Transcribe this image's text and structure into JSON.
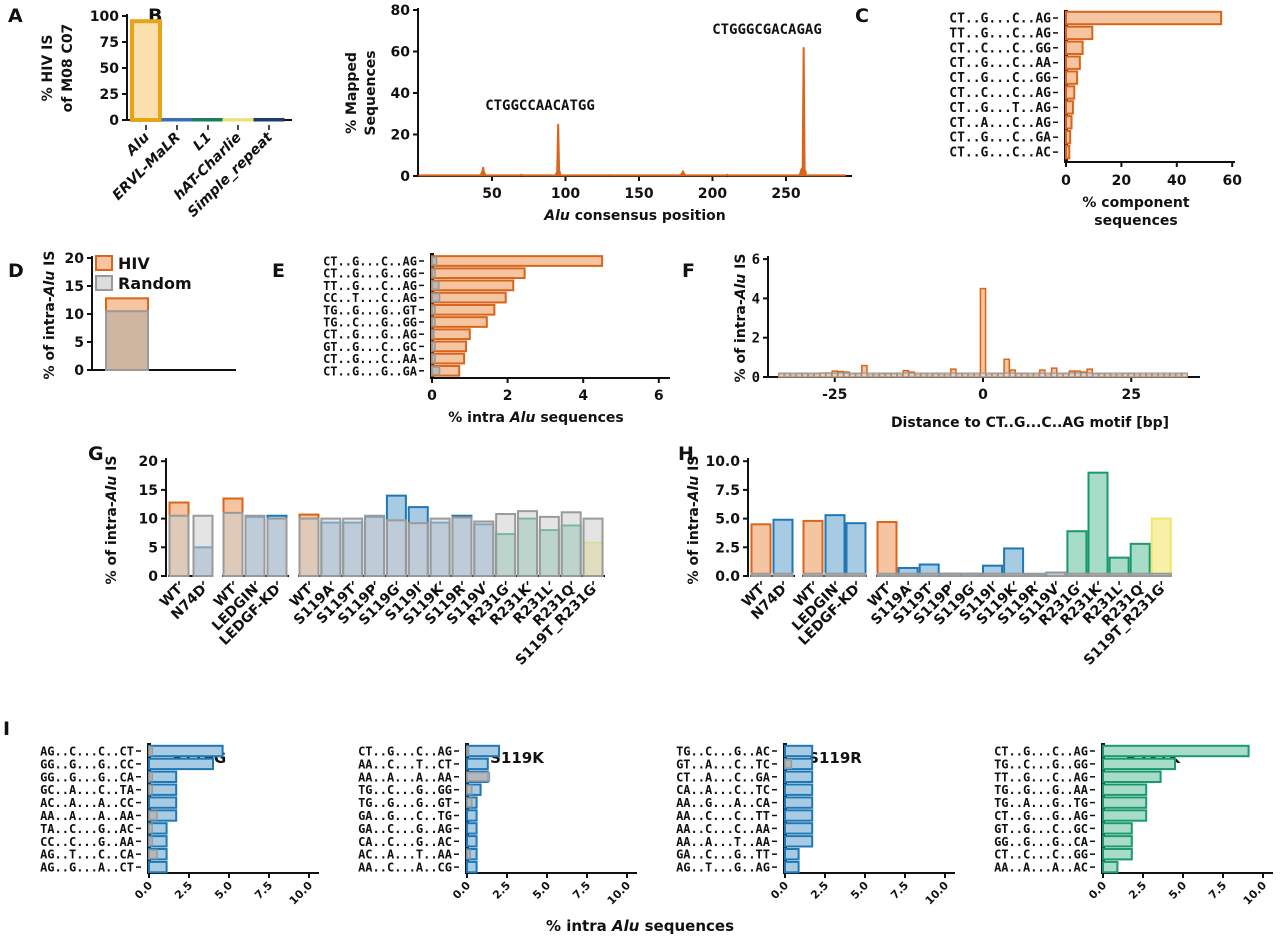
{
  "colors": {
    "orange": "#d9651b",
    "orange_fill": "#f4c5a0",
    "gold": "#e8a317",
    "gold_fill": "#f9e0ad",
    "blue": "#1f77b4",
    "blue_fill": "#a8cbe4",
    "green": "#1a9a6c",
    "green_fill": "#a6dcc8",
    "yellow": "#f2e56b",
    "yellow_fill": "#f8f0a8",
    "gray": "#9a9a9a"
  },
  "chart_data": [
    {
      "id": "A",
      "panel_label": "A",
      "type": "bar",
      "ylabel": [
        "% HIV IS",
        "of M08 C07"
      ],
      "ylim": [
        0,
        100
      ],
      "yticks": [
        "0",
        "25",
        "50",
        "75",
        "100"
      ],
      "categories": [
        "Alu",
        "ERVL-MaLR",
        "L1",
        "hAT-Charlie",
        "Simple_repeat"
      ],
      "values": [
        95,
        0.5,
        0.5,
        0.3,
        0.5
      ],
      "bar_colors": [
        "#e8a317",
        "#3a6fb0",
        "#1a7f5a",
        "#f0e070",
        "#1f3c6e"
      ]
    },
    {
      "id": "B",
      "panel_label": "B",
      "type": "line",
      "xlabel_italic": "Alu",
      "xlabel_rest": " consensus position",
      "ylabel": [
        "% Mapped",
        "Sequences"
      ],
      "xlim": [
        0,
        290
      ],
      "ylim": [
        0,
        80
      ],
      "xticks": [
        "50",
        "100",
        "150",
        "200",
        "250"
      ],
      "yticks": [
        "0",
        "20",
        "40",
        "60",
        "80"
      ],
      "points": [
        [
          10,
          0.3
        ],
        [
          30,
          0.3
        ],
        [
          43,
          1.5
        ],
        [
          44,
          4.2
        ],
        [
          45,
          1.2
        ],
        [
          60,
          0.3
        ],
        [
          70,
          0.6
        ],
        [
          80,
          0.3
        ],
        [
          94,
          1.5
        ],
        [
          95,
          25
        ],
        [
          96,
          2
        ],
        [
          110,
          0.3
        ],
        [
          130,
          0.4
        ],
        [
          150,
          0.3
        ],
        [
          170,
          0.3
        ],
        [
          179,
          1
        ],
        [
          180,
          2.5
        ],
        [
          181,
          0.8
        ],
        [
          195,
          0.3
        ],
        [
          210,
          0.6
        ],
        [
          230,
          0.3
        ],
        [
          250,
          0.3
        ],
        [
          260,
          2
        ],
        [
          261,
          4
        ],
        [
          262,
          62
        ],
        [
          263,
          3
        ],
        [
          270,
          0.3
        ],
        [
          290,
          0.3
        ]
      ],
      "annotations": [
        "CTGGCCAACATGG",
        "CTGGGCGACAGAG"
      ]
    },
    {
      "id": "C",
      "panel_label": "C",
      "type": "bar",
      "orientation": "horizontal",
      "xlabel": [
        "% component",
        "sequences"
      ],
      "xlim": [
        0,
        60
      ],
      "xticks": [
        "0",
        "20",
        "40",
        "60"
      ],
      "categories": [
        "CT..G...C..AG",
        "TT..G...C..AG",
        "CT..C...C..GG",
        "CT..G...C..AA",
        "CT..G...C..GG",
        "CT..C...C..AG",
        "CT..G...T..AG",
        "CT..A...C..AG",
        "CT..G...C..GA",
        "CT..G...C..AC"
      ],
      "values": [
        56,
        9.5,
        6,
        5,
        4,
        3,
        2.5,
        2,
        1.5,
        1.2
      ]
    },
    {
      "id": "D",
      "panel_label": "D",
      "type": "bar",
      "ylabel_pre": "% of intra-",
      "ylabel_italic": "Alu",
      "ylabel_post": " IS",
      "ylim": [
        0,
        20
      ],
      "yticks": [
        "0",
        "5",
        "10",
        "15",
        "20"
      ],
      "legend": [
        "HIV",
        "Random"
      ],
      "series": [
        {
          "name": "HIV",
          "values": [
            12.8
          ]
        },
        {
          "name": "Random",
          "values": [
            10.5
          ]
        }
      ]
    },
    {
      "id": "E",
      "panel_label": "E",
      "type": "bar",
      "orientation": "horizontal",
      "xlabel_pre": "% intra ",
      "xlabel_italic": "Alu",
      "xlabel_post": " sequences",
      "xlim": [
        0,
        6
      ],
      "xticks": [
        "0",
        "2",
        "4",
        "6"
      ],
      "categories": [
        "CT..G...C..AG",
        "CT..G...G..GG",
        "TT..G...C..AG",
        "CC..T...C..AG",
        "TG..G...G..GT",
        "TG..C...G..GG",
        "CT..G...G..AG",
        "GT..G...C..GC",
        "CT..G...C..AA",
        "CT..G...G..GA"
      ],
      "series": [
        {
          "name": "HIV",
          "values": [
            4.5,
            2.45,
            2.15,
            1.95,
            1.65,
            1.45,
            1.0,
            0.9,
            0.85,
            0.72
          ]
        },
        {
          "name": "Random",
          "values": [
            0.12,
            0.08,
            0.18,
            0.2,
            0.08,
            0.08,
            0.05,
            0.08,
            0.08,
            0.2
          ]
        }
      ]
    },
    {
      "id": "F",
      "panel_label": "F",
      "type": "bar",
      "xlabel": "Distance to CT..G...C..AG motif [bp]",
      "ylabel_pre": "% of intra-",
      "ylabel_italic": "Alu",
      "ylabel_post": " IS",
      "xlim": [
        -34,
        34
      ],
      "ylim": [
        0,
        6
      ],
      "xticks": [
        "-25",
        "0",
        "25"
      ],
      "yticks": [
        "0",
        "2",
        "4",
        "6"
      ],
      "x": [
        -34,
        -33,
        -32,
        -31,
        -30,
        -29,
        -28,
        -27,
        -26,
        -25,
        -24,
        -23,
        -22,
        -21,
        -20,
        -19,
        -18,
        -17,
        -16,
        -15,
        -14,
        -13,
        -12,
        -11,
        -10,
        -9,
        -8,
        -7,
        -6,
        -5,
        -4,
        -3,
        -2,
        -1,
        0,
        1,
        2,
        3,
        4,
        5,
        6,
        7,
        8,
        9,
        10,
        11,
        12,
        13,
        14,
        15,
        16,
        17,
        18,
        19,
        20,
        21,
        22,
        23,
        24,
        25,
        26,
        27,
        28,
        29,
        30,
        31,
        32,
        33,
        34
      ],
      "series": [
        {
          "name": "HIV",
          "values": [
            0.15,
            0.15,
            0.12,
            0.15,
            0.15,
            0.12,
            0.15,
            0.2,
            0.2,
            0.3,
            0.28,
            0.25,
            0.15,
            0.15,
            0.58,
            0.12,
            0.12,
            0.15,
            0.15,
            0.15,
            0.12,
            0.32,
            0.25,
            0.12,
            0.15,
            0.12,
            0.15,
            0.12,
            0.12,
            0.4,
            0.15,
            0.15,
            0.12,
            0.12,
            4.5,
            0.12,
            0.15,
            0.15,
            0.9,
            0.35,
            0.15,
            0.15,
            0.12,
            0.12,
            0.35,
            0.12,
            0.45,
            0.15,
            0.15,
            0.3,
            0.3,
            0.25,
            0.4,
            0.15,
            0.15,
            0.15,
            0.12,
            0.12,
            0.15,
            0.15,
            0.12,
            0.12,
            0.12,
            0.12,
            0.12,
            0.12,
            0.12,
            0.12,
            0.18
          ]
        },
        {
          "name": "Random",
          "values": [
            0.2,
            0.2,
            0.2,
            0.2,
            0.2,
            0.2,
            0.2,
            0.2,
            0.2,
            0.2,
            0.2,
            0.2,
            0.2,
            0.2,
            0.2,
            0.2,
            0.2,
            0.2,
            0.2,
            0.2,
            0.2,
            0.2,
            0.2,
            0.2,
            0.2,
            0.2,
            0.2,
            0.2,
            0.2,
            0.2,
            0.2,
            0.2,
            0.2,
            0.2,
            0.2,
            0.2,
            0.2,
            0.2,
            0.2,
            0.2,
            0.2,
            0.2,
            0.2,
            0.2,
            0.2,
            0.2,
            0.2,
            0.2,
            0.2,
            0.2,
            0.2,
            0.2,
            0.2,
            0.2,
            0.2,
            0.2,
            0.2,
            0.2,
            0.2,
            0.2,
            0.2,
            0.2,
            0.2,
            0.2,
            0.2,
            0.2,
            0.2,
            0.2,
            0.2
          ]
        }
      ]
    },
    {
      "id": "G",
      "panel_label": "G",
      "type": "bar",
      "ylabel_pre": "% of intra-",
      "ylabel_italic": "Alu",
      "ylabel_post": " IS",
      "ylim": [
        0,
        20
      ],
      "yticks": [
        "0",
        "5",
        "10",
        "15",
        "20"
      ],
      "groups": [
        [
          "WT",
          "N74D"
        ],
        [
          "WT",
          "LEDGIN",
          "LEDGF-KD"
        ],
        [
          "WT",
          "S119A",
          "S119T",
          "S119P",
          "S119G",
          "S119I",
          "S119K",
          "S119R",
          "S119V",
          "R231G",
          "R231K",
          "R231L",
          "R231Q",
          "S119T_R231G"
        ]
      ],
      "color_keys": [
        [
          "orange",
          "blue"
        ],
        [
          "orange",
          "blue",
          "blue"
        ],
        [
          "orange",
          "blue",
          "blue",
          "blue",
          "blue",
          "blue",
          "blue",
          "blue",
          "blue",
          "green",
          "green",
          "green",
          "green",
          "yellow"
        ]
      ],
      "hiv": [
        [
          12.8,
          5.0
        ],
        [
          13.5,
          10.3,
          10.5
        ],
        [
          10.7,
          9.3,
          9.3,
          10.3,
          14.0,
          12.0,
          9.3,
          10.5,
          9.0,
          7.3,
          10.0,
          8.0,
          8.8,
          5.8
        ]
      ],
      "random": [
        [
          10.5,
          10.5
        ],
        [
          11.0,
          10.5,
          10.0
        ],
        [
          10.0,
          10.0,
          10.0,
          10.5,
          9.7,
          9.2,
          10.0,
          10.2,
          9.5,
          10.8,
          11.3,
          10.3,
          11.1,
          10.0
        ]
      ]
    },
    {
      "id": "H",
      "panel_label": "H",
      "type": "bar",
      "ylabel_pre": "% of intra-",
      "ylabel_italic": "Alu",
      "ylabel_post": " IS",
      "ylim": [
        0,
        10
      ],
      "yticks": [
        "0.0",
        "2.5",
        "5.0",
        "7.5",
        "10.0"
      ],
      "groups": [
        [
          "WT",
          "N74D"
        ],
        [
          "WT",
          "LEDGIN",
          "LEDGF-KD"
        ],
        [
          "WT",
          "S119A",
          "S119T",
          "S119P",
          "S119G",
          "S119I",
          "S119K",
          "S119R",
          "S119V",
          "R231G",
          "R231K",
          "R231L",
          "R231Q",
          "S119T_R231G"
        ]
      ],
      "color_keys": [
        [
          "orange",
          "blue"
        ],
        [
          "orange",
          "blue",
          "blue"
        ],
        [
          "orange",
          "blue",
          "blue",
          "blue",
          "blue",
          "blue",
          "blue",
          "blue",
          "blue",
          "green",
          "green",
          "green",
          "green",
          "yellow"
        ]
      ],
      "hiv": [
        [
          4.5,
          4.9
        ],
        [
          4.8,
          5.3,
          4.6
        ],
        [
          4.7,
          0.7,
          1.0,
          0.2,
          0.2,
          0.9,
          2.4,
          0.1,
          0.3,
          3.9,
          9.0,
          1.6,
          2.8,
          5.0
        ]
      ],
      "random": [
        [
          0.2,
          0.2
        ],
        [
          0.2,
          0.2,
          0.2
        ],
        [
          0.2,
          0.2,
          0.2,
          0.2,
          0.2,
          0.2,
          0.2,
          0.2,
          0.3,
          0.2,
          0.2,
          0.2,
          0.2,
          0.2
        ]
      ]
    },
    {
      "id": "I",
      "panel_label": "I",
      "type": "bar",
      "orientation": "horizontal",
      "xlabel_pre": "% intra ",
      "xlabel_italic": "Alu",
      "xlabel_post": " sequences",
      "xlim": [
        0,
        10
      ],
      "xticks": [
        "0.0",
        "2.5",
        "5.0",
        "7.5",
        "10.0"
      ],
      "panels": [
        {
          "title": "S119G",
          "color_key": "blue",
          "categories": [
            "AG..C...C..CT",
            "GG..G...G..CC",
            "GG..G...G..CA",
            "GC..A...C..TA",
            "AC..A...A..CC",
            "AA..A...A..AA",
            "TA..C...G..AC",
            "CC..C...G..AA",
            "AG..T...C..CA",
            "AG..G...A..CT"
          ],
          "values": [
            4.6,
            4.0,
            1.7,
            1.7,
            1.7,
            1.7,
            1.1,
            1.1,
            1.1,
            1.1
          ],
          "random": [
            0.2,
            0,
            0.2,
            0.2,
            0,
            0.5,
            0.2,
            0.2,
            0.5,
            0
          ]
        },
        {
          "title": "S119K",
          "color_key": "blue",
          "categories": [
            "CT..G...C..AG",
            "AA..C...T..CT",
            "AA..A...A..AA",
            "TG..C...G..GG",
            "TG..G...G..GT",
            "GA..G...C..TG",
            "GA..C...G..AG",
            "CA..C...G..AC",
            "AC..A...T..AA",
            "AA..C...A..CG"
          ],
          "values": [
            2.0,
            1.3,
            1.3,
            0.85,
            0.6,
            0.6,
            0.6,
            0.6,
            0.6,
            0.6
          ],
          "random": [
            0.1,
            0,
            1.4,
            0.3,
            0.3,
            0,
            0,
            0,
            0.2,
            0
          ]
        },
        {
          "title": "S119R",
          "color_key": "blue",
          "categories": [
            "TG..C...G..AC",
            "GT..A...C..TC",
            "CT..A...C..GA",
            "CA..A...C..TC",
            "AA..G...A..CA",
            "AA..C...C..TT",
            "AA..C...C..AA",
            "AA..A...T..AA",
            "GA..C...G..TT",
            "AG..T...G..AG"
          ],
          "values": [
            1.7,
            1.7,
            1.7,
            1.7,
            1.7,
            1.7,
            1.7,
            1.7,
            0.85,
            0.85
          ],
          "random": [
            0,
            0.4,
            0,
            0,
            0,
            0,
            0,
            0,
            0,
            0
          ]
        },
        {
          "title": "R231K",
          "color_key": "green",
          "categories": [
            "CT..G...C..AG",
            "TG..C...G..GG",
            "TT..G...C..AG",
            "TG..G...G..AA",
            "TG..A...G..TG",
            "CT..G...G..AG",
            "GT..G...C..GC",
            "GG..G...G..CA",
            "CT..C...C..GG",
            "AA..A...A..AC"
          ],
          "values": [
            9.1,
            4.5,
            3.6,
            2.7,
            2.7,
            2.7,
            1.8,
            1.8,
            1.8,
            0.9
          ],
          "random": [
            0,
            0,
            0,
            0,
            0,
            0,
            0,
            0,
            0,
            0
          ]
        }
      ]
    }
  ]
}
